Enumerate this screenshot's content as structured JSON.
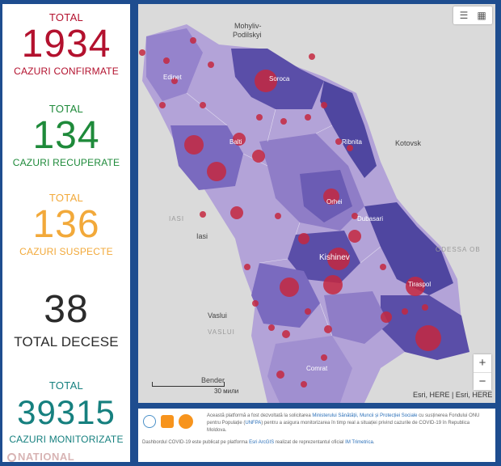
{
  "stats": {
    "confirmed": {
      "top": "TOTAL",
      "value": "1934",
      "bottom": "CAZURI CONFIRMATE",
      "color": "#b3112e"
    },
    "recovered": {
      "top": "TOTAL",
      "value": "134",
      "bottom": "CAZURI RECUPERATE",
      "color": "#1e8a3a"
    },
    "suspect": {
      "top": "TOTAL",
      "value": "136",
      "bottom": "CAZURI SUSPECTE",
      "color": "#f2a93a"
    },
    "deaths": {
      "top": "",
      "value": "38",
      "bottom": "TOTAL DECESE",
      "color": "#2b2b2b"
    },
    "monitored": {
      "top": "TOTAL",
      "value": "39315",
      "bottom": "CAZURI MONITORIZATE",
      "color": "#16807f"
    }
  },
  "watermark": "NATIONAL",
  "map": {
    "labels": {
      "mohyliv": "Mohyliv-",
      "podilskyi": "Podilskyi",
      "edinet": "Edinet",
      "soroca": "Soroca",
      "balti": "Balti",
      "ribnita": "Ribnita",
      "kotovsk": "Kotovsk",
      "orhei": "Orhei",
      "dubasari": "Dubasari",
      "iasi_caps": "IASI",
      "iasi": "Iasi",
      "chisinau": "Kishinev",
      "odessa": "ODESSA OB",
      "vaslui": "Vaslui",
      "vaslui_caps": "VASLUI",
      "tiraspol": "Tiraspol",
      "comrat": "Comrat",
      "bender": "Bender",
      "scale": "30 мили",
      "attribution": "Esri, HERE | Esri, HERE"
    },
    "legend_icon": "list-icon",
    "qr_icon": "qr-code-icon",
    "zoom_in": "+",
    "zoom_out": "−",
    "colors": {
      "land": "#dadada",
      "light": "#b3a3d8",
      "mid": "#8f7dc7",
      "dark": "#6b5cb4",
      "darkest": "#4f46a0",
      "bubble": "#c4283f"
    }
  },
  "footer": {
    "text_a": "Această platformă a fost dezvoltată la solicitarea ",
    "link_a": "Ministerului Sănătății, Muncii și Protecției Sociale",
    "text_b": " cu susținerea Fondului ONU pentru Populație (",
    "link_b": "UNFPA",
    "text_c": ") pentru a asigura monitorizarea în timp real a situației privind cazurile de COVID-19 în Republica Moldova.",
    "text_d": "Dashbordul COVID-19 este publicat pe platforma ",
    "link_c": "Esri ArcGIS",
    "text_e": " realizat de reprezentantul oficial ",
    "link_d": "IM Trimetrica",
    "text_f": "."
  }
}
